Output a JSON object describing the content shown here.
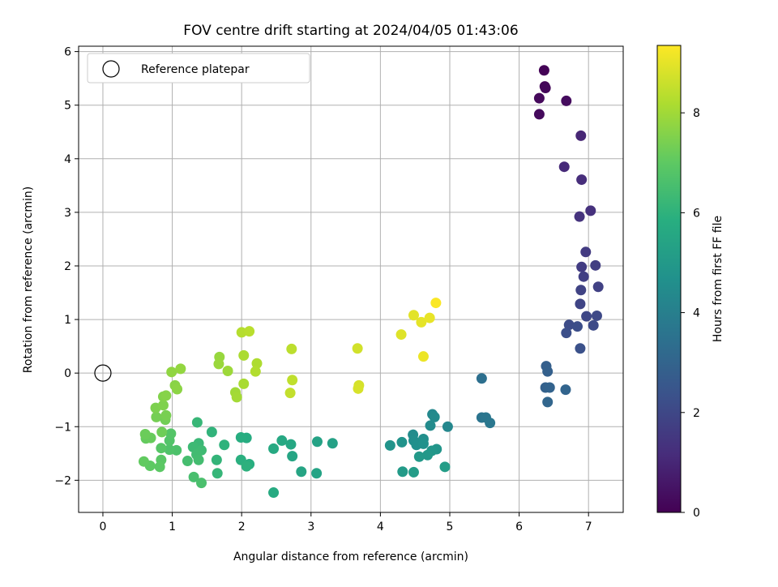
{
  "chart_data": {
    "type": "scatter",
    "title": "FOV centre drift starting at 2024/04/05 01:43:06",
    "xlabel": "Angular distance from reference (arcmin)",
    "ylabel": "Rotation from reference (arcmin)",
    "xlim": [
      -0.35,
      7.5
    ],
    "ylim": [
      -2.6,
      6.1
    ],
    "xticks": [
      0,
      1,
      2,
      3,
      4,
      5,
      6,
      7
    ],
    "yticks": [
      -2,
      -1,
      0,
      1,
      2,
      3,
      4,
      5,
      6
    ],
    "grid": true,
    "legend": {
      "position": "top-left",
      "entries": [
        "Reference platepar"
      ]
    },
    "colorbar": {
      "label": "Hours from first FF file",
      "min": 0,
      "max": 9.35,
      "ticks": [
        0,
        2,
        4,
        6,
        8
      ],
      "colormap": "viridis"
    },
    "reference_point": {
      "x": 0,
      "y": 0
    },
    "points": [
      {
        "x": 6.36,
        "y": 5.65,
        "c": 0.05
      },
      {
        "x": 6.37,
        "y": 5.35,
        "c": 0.1
      },
      {
        "x": 6.38,
        "y": 5.32,
        "c": 0.15
      },
      {
        "x": 6.29,
        "y": 5.13,
        "c": 0.2
      },
      {
        "x": 6.29,
        "y": 4.83,
        "c": 0.25
      },
      {
        "x": 6.68,
        "y": 5.08,
        "c": 0.3
      },
      {
        "x": 6.89,
        "y": 4.43,
        "c": 1.0
      },
      {
        "x": 6.65,
        "y": 3.85,
        "c": 1.1
      },
      {
        "x": 6.9,
        "y": 3.61,
        "c": 1.2
      },
      {
        "x": 7.03,
        "y": 3.03,
        "c": 1.3
      },
      {
        "x": 6.87,
        "y": 2.92,
        "c": 1.35
      },
      {
        "x": 6.96,
        "y": 2.26,
        "c": 1.6
      },
      {
        "x": 6.9,
        "y": 1.98,
        "c": 1.65
      },
      {
        "x": 7.1,
        "y": 2.01,
        "c": 1.7
      },
      {
        "x": 6.93,
        "y": 1.8,
        "c": 1.75
      },
      {
        "x": 7.14,
        "y": 1.61,
        "c": 1.8
      },
      {
        "x": 6.89,
        "y": 1.55,
        "c": 1.85
      },
      {
        "x": 6.88,
        "y": 1.29,
        "c": 1.9
      },
      {
        "x": 6.97,
        "y": 1.06,
        "c": 2.0
      },
      {
        "x": 7.12,
        "y": 1.07,
        "c": 2.05
      },
      {
        "x": 7.07,
        "y": 0.89,
        "c": 2.1
      },
      {
        "x": 6.72,
        "y": 0.9,
        "c": 2.15
      },
      {
        "x": 6.84,
        "y": 0.87,
        "c": 2.2
      },
      {
        "x": 6.68,
        "y": 0.75,
        "c": 2.25
      },
      {
        "x": 6.88,
        "y": 0.46,
        "c": 2.3
      },
      {
        "x": 6.39,
        "y": 0.13,
        "c": 2.8
      },
      {
        "x": 6.41,
        "y": 0.03,
        "c": 2.85
      },
      {
        "x": 6.38,
        "y": -0.27,
        "c": 2.9
      },
      {
        "x": 6.44,
        "y": -0.27,
        "c": 2.95
      },
      {
        "x": 6.67,
        "y": -0.31,
        "c": 3.0
      },
      {
        "x": 6.41,
        "y": -0.54,
        "c": 3.05
      },
      {
        "x": 5.46,
        "y": -0.1,
        "c": 3.4
      },
      {
        "x": 5.46,
        "y": -0.83,
        "c": 3.6
      },
      {
        "x": 5.52,
        "y": -0.83,
        "c": 3.65
      },
      {
        "x": 5.58,
        "y": -0.93,
        "c": 3.7
      },
      {
        "x": 4.97,
        "y": -1.0,
        "c": 4.3
      },
      {
        "x": 4.75,
        "y": -0.77,
        "c": 4.35
      },
      {
        "x": 4.78,
        "y": -0.82,
        "c": 4.4
      },
      {
        "x": 4.72,
        "y": -0.98,
        "c": 4.45
      },
      {
        "x": 4.47,
        "y": -1.15,
        "c": 4.5
      },
      {
        "x": 4.48,
        "y": -1.26,
        "c": 4.55
      },
      {
        "x": 4.62,
        "y": -1.23,
        "c": 4.6
      },
      {
        "x": 4.52,
        "y": -1.34,
        "c": 4.65
      },
      {
        "x": 4.62,
        "y": -1.32,
        "c": 4.7
      },
      {
        "x": 4.31,
        "y": -1.29,
        "c": 4.75
      },
      {
        "x": 4.14,
        "y": -1.35,
        "c": 4.8
      },
      {
        "x": 4.81,
        "y": -1.42,
        "c": 4.85
      },
      {
        "x": 4.74,
        "y": -1.45,
        "c": 4.9
      },
      {
        "x": 4.68,
        "y": -1.53,
        "c": 4.95
      },
      {
        "x": 4.56,
        "y": -1.56,
        "c": 5.0
      },
      {
        "x": 4.32,
        "y": -1.84,
        "c": 5.05
      },
      {
        "x": 4.48,
        "y": -1.85,
        "c": 5.1
      },
      {
        "x": 4.93,
        "y": -1.75,
        "c": 5.15
      },
      {
        "x": 3.31,
        "y": -1.31,
        "c": 5.3
      },
      {
        "x": 3.09,
        "y": -1.28,
        "c": 5.35
      },
      {
        "x": 3.08,
        "y": -1.87,
        "c": 5.4
      },
      {
        "x": 2.86,
        "y": -1.84,
        "c": 5.45
      },
      {
        "x": 2.73,
        "y": -1.55,
        "c": 5.5
      },
      {
        "x": 2.71,
        "y": -1.33,
        "c": 5.55
      },
      {
        "x": 2.58,
        "y": -1.26,
        "c": 5.6
      },
      {
        "x": 2.46,
        "y": -1.41,
        "c": 5.65
      },
      {
        "x": 2.46,
        "y": -2.23,
        "c": 5.7
      },
      {
        "x": 2.07,
        "y": -1.21,
        "c": 5.75
      },
      {
        "x": 1.99,
        "y": -1.2,
        "c": 5.8
      },
      {
        "x": 2.11,
        "y": -1.7,
        "c": 5.85
      },
      {
        "x": 1.99,
        "y": -1.62,
        "c": 5.9
      },
      {
        "x": 2.07,
        "y": -1.74,
        "c": 5.95
      },
      {
        "x": 1.75,
        "y": -1.34,
        "c": 6.0
      },
      {
        "x": 1.57,
        "y": -1.1,
        "c": 6.05
      },
      {
        "x": 1.64,
        "y": -1.62,
        "c": 6.1
      },
      {
        "x": 1.65,
        "y": -1.87,
        "c": 6.15
      },
      {
        "x": 1.36,
        "y": -0.92,
        "c": 6.2
      },
      {
        "x": 1.38,
        "y": -1.31,
        "c": 6.25
      },
      {
        "x": 1.3,
        "y": -1.38,
        "c": 6.3
      },
      {
        "x": 1.42,
        "y": -1.44,
        "c": 6.35
      },
      {
        "x": 1.35,
        "y": -1.52,
        "c": 6.4
      },
      {
        "x": 1.38,
        "y": -1.62,
        "c": 6.45
      },
      {
        "x": 1.22,
        "y": -1.64,
        "c": 6.5
      },
      {
        "x": 1.31,
        "y": -1.94,
        "c": 6.55
      },
      {
        "x": 1.42,
        "y": -2.05,
        "c": 6.6
      },
      {
        "x": 1.06,
        "y": -1.44,
        "c": 6.65
      },
      {
        "x": 0.96,
        "y": -1.43,
        "c": 6.7
      },
      {
        "x": 0.96,
        "y": -1.26,
        "c": 6.75
      },
      {
        "x": 0.98,
        "y": -1.13,
        "c": 6.8
      },
      {
        "x": 0.84,
        "y": -1.4,
        "c": 6.85
      },
      {
        "x": 0.84,
        "y": -1.62,
        "c": 6.9
      },
      {
        "x": 0.82,
        "y": -1.75,
        "c": 6.95
      },
      {
        "x": 0.68,
        "y": -1.73,
        "c": 7.0
      },
      {
        "x": 0.59,
        "y": -1.65,
        "c": 7.05
      },
      {
        "x": 0.62,
        "y": -1.22,
        "c": 7.1
      },
      {
        "x": 0.69,
        "y": -1.21,
        "c": 7.15
      },
      {
        "x": 0.61,
        "y": -1.14,
        "c": 7.2
      },
      {
        "x": 0.85,
        "y": -1.1,
        "c": 7.25
      },
      {
        "x": 0.9,
        "y": -0.87,
        "c": 7.3
      },
      {
        "x": 0.77,
        "y": -0.82,
        "c": 7.35
      },
      {
        "x": 0.91,
        "y": -0.79,
        "c": 7.4
      },
      {
        "x": 0.76,
        "y": -0.65,
        "c": 7.45
      },
      {
        "x": 0.87,
        "y": -0.6,
        "c": 7.5
      },
      {
        "x": 0.87,
        "y": -0.44,
        "c": 7.55
      },
      {
        "x": 0.91,
        "y": -0.42,
        "c": 7.6
      },
      {
        "x": 1.04,
        "y": -0.23,
        "c": 7.65
      },
      {
        "x": 1.07,
        "y": -0.3,
        "c": 7.7
      },
      {
        "x": 0.99,
        "y": 0.02,
        "c": 7.75
      },
      {
        "x": 1.12,
        "y": 0.08,
        "c": 7.8
      },
      {
        "x": 1.68,
        "y": 0.3,
        "c": 7.85
      },
      {
        "x": 1.67,
        "y": 0.17,
        "c": 7.9
      },
      {
        "x": 1.8,
        "y": 0.04,
        "c": 7.95
      },
      {
        "x": 1.91,
        "y": -0.36,
        "c": 8.0
      },
      {
        "x": 1.93,
        "y": -0.45,
        "c": 8.05
      },
      {
        "x": 2.03,
        "y": -0.2,
        "c": 8.1
      },
      {
        "x": 2.03,
        "y": 0.33,
        "c": 8.15
      },
      {
        "x": 2.22,
        "y": 0.18,
        "c": 8.2
      },
      {
        "x": 2.2,
        "y": 0.03,
        "c": 8.25
      },
      {
        "x": 2.0,
        "y": 0.76,
        "c": 8.3
      },
      {
        "x": 2.11,
        "y": 0.78,
        "c": 8.35
      },
      {
        "x": 2.72,
        "y": 0.45,
        "c": 8.4
      },
      {
        "x": 2.73,
        "y": -0.13,
        "c": 8.45
      },
      {
        "x": 2.7,
        "y": -0.37,
        "c": 8.5
      },
      {
        "x": 3.67,
        "y": 0.46,
        "c": 8.7
      },
      {
        "x": 3.69,
        "y": -0.23,
        "c": 8.75
      },
      {
        "x": 3.68,
        "y": -0.29,
        "c": 8.8
      },
      {
        "x": 4.3,
        "y": 0.72,
        "c": 8.9
      },
      {
        "x": 4.48,
        "y": 1.08,
        "c": 8.95
      },
      {
        "x": 4.59,
        "y": 0.95,
        "c": 9.0
      },
      {
        "x": 4.71,
        "y": 1.03,
        "c": 9.05
      },
      {
        "x": 4.8,
        "y": 1.31,
        "c": 9.3
      },
      {
        "x": 4.62,
        "y": 0.31,
        "c": 9.1
      }
    ]
  }
}
